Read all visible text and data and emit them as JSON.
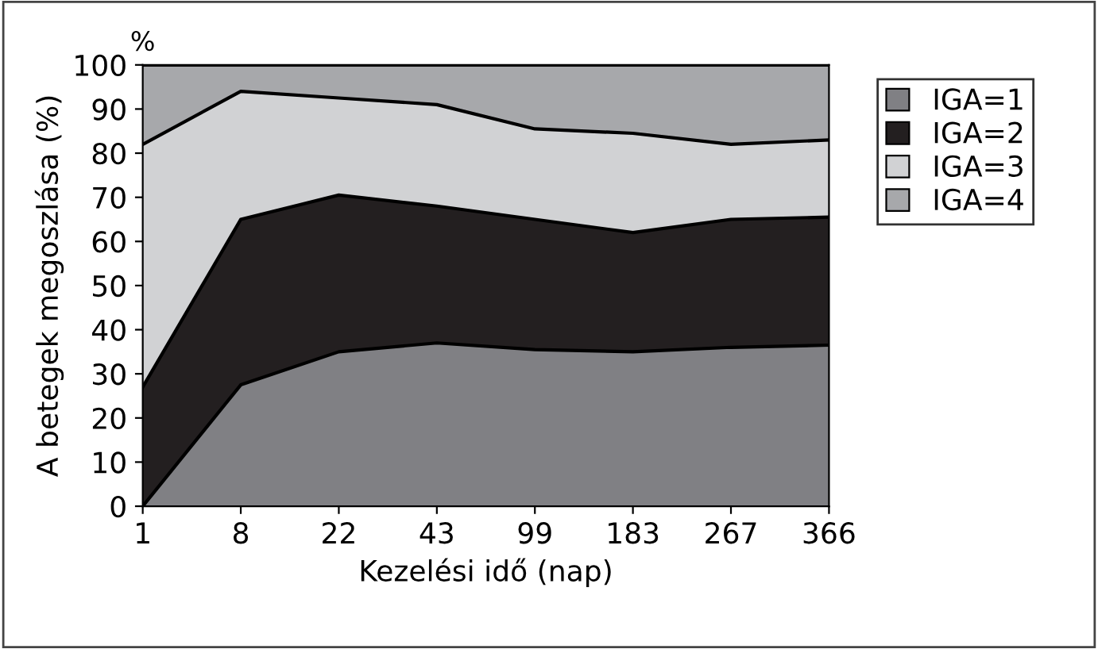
{
  "chart_data": {
    "type": "area",
    "stacked": true,
    "xlabel": "Kezelési idő (nap)",
    "ylabel": "A betegek megoszlása (%)",
    "annotations": [
      "%"
    ],
    "categories": [
      "1",
      "8",
      "22",
      "43",
      "99",
      "183",
      "267",
      "366"
    ],
    "series": [
      {
        "name": "IGA=1",
        "color": "#808084",
        "values": [
          0,
          27.5,
          35,
          37,
          35.5,
          35,
          36,
          36.5
        ]
      },
      {
        "name": "IGA=2",
        "color": "#231f20",
        "values": [
          27,
          37.5,
          35.5,
          31,
          29.5,
          27,
          29,
          29
        ]
      },
      {
        "name": "IGA=3",
        "color": "#d1d2d4",
        "values": [
          55,
          29,
          22,
          23,
          20.5,
          22.5,
          17,
          17.5
        ]
      },
      {
        "name": "IGA=4",
        "color": "#a7a8ab",
        "values": [
          18,
          6,
          7.5,
          9,
          14.5,
          15.5,
          18,
          17
        ]
      }
    ],
    "ylim": [
      0,
      100
    ],
    "yticks": [
      0,
      10,
      20,
      30,
      40,
      50,
      60,
      70,
      80,
      90,
      100
    ],
    "grid": false,
    "legend": "right"
  }
}
